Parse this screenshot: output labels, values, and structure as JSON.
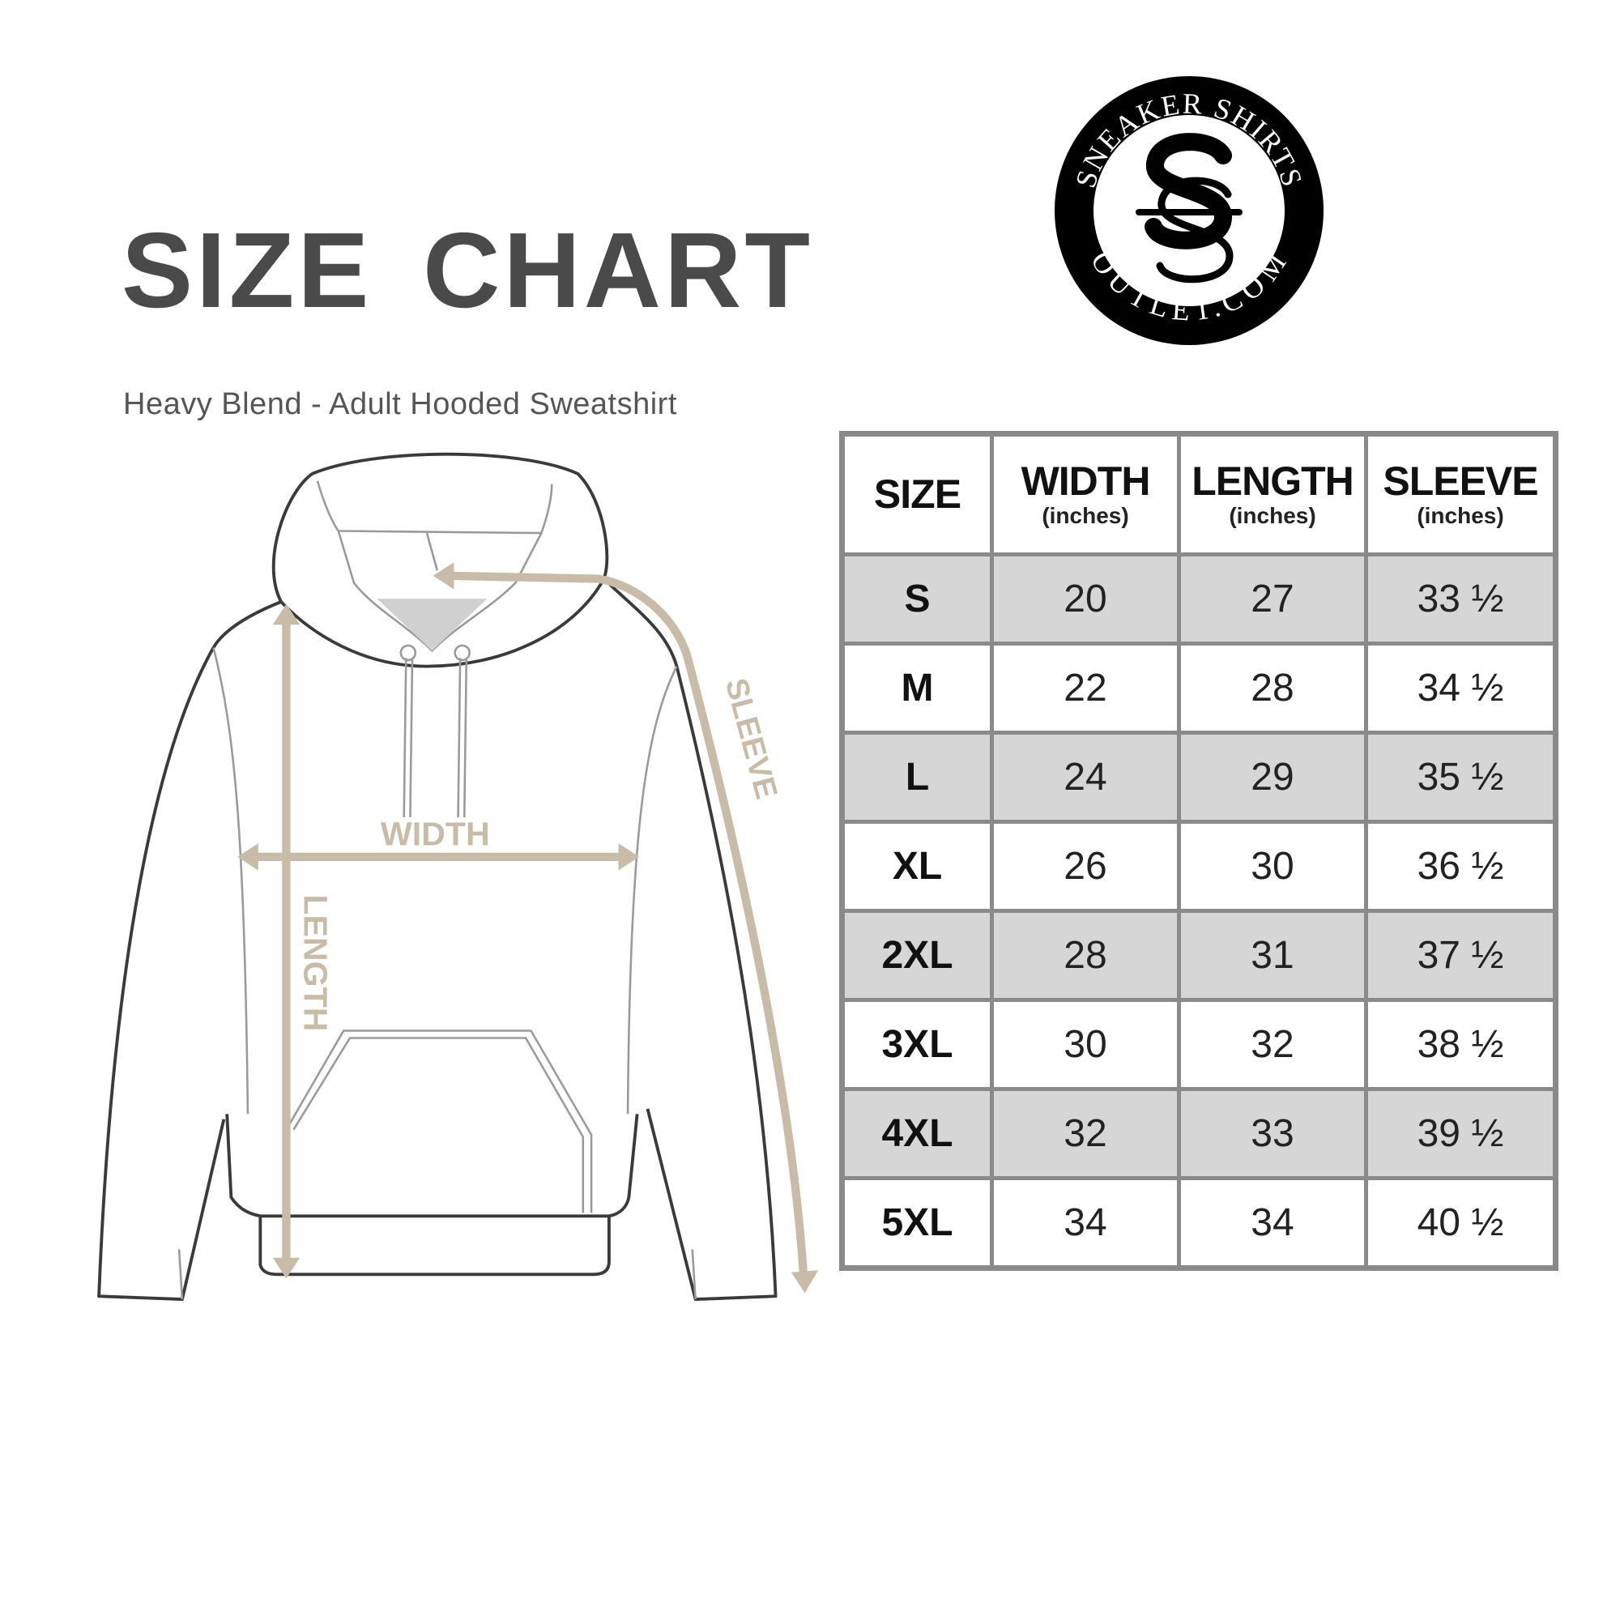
{
  "title": "SIZE CHART",
  "subtitle": "Heavy Blend - Adult Hooded Sweatshirt",
  "logo": {
    "top_text": "SNEAKER SHIRTS",
    "bottom_text": "OUTLET.COM",
    "monogram": "S"
  },
  "diagram": {
    "labels": {
      "width": "WIDTH",
      "length": "LENGTH",
      "sleeve": "SLEEVE"
    },
    "arrow_color": "#c8bca9"
  },
  "table": {
    "headers": [
      {
        "label": "SIZE",
        "unit": ""
      },
      {
        "label": "WIDTH",
        "unit": "(inches)"
      },
      {
        "label": "LENGTH",
        "unit": "(inches)"
      },
      {
        "label": "SLEEVE",
        "unit": "(inches)"
      }
    ],
    "rows": [
      {
        "size": "S",
        "width": "20",
        "length": "27",
        "sleeve": "33 ½"
      },
      {
        "size": "M",
        "width": "22",
        "length": "28",
        "sleeve": "34 ½"
      },
      {
        "size": "L",
        "width": "24",
        "length": "29",
        "sleeve": "35 ½"
      },
      {
        "size": "XL",
        "width": "26",
        "length": "30",
        "sleeve": "36 ½"
      },
      {
        "size": "2XL",
        "width": "28",
        "length": "31",
        "sleeve": "37 ½"
      },
      {
        "size": "3XL",
        "width": "30",
        "length": "32",
        "sleeve": "38 ½"
      },
      {
        "size": "4XL",
        "width": "32",
        "length": "33",
        "sleeve": "39 ½"
      },
      {
        "size": "5XL",
        "width": "34",
        "length": "34",
        "sleeve": "40 ½"
      }
    ]
  }
}
